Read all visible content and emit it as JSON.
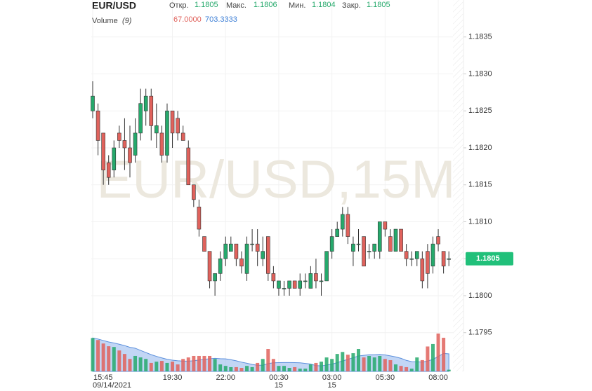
{
  "chart_data": {
    "type": "candlestick",
    "symbol": "EUR/USD",
    "watermark": "EUR/USD,15M",
    "ohlc_header": [
      {
        "label": "Откр.",
        "value": 1.1805
      },
      {
        "label": "Макс.",
        "value": 1.1806
      },
      {
        "label": "Мин.",
        "value": 1.1804
      },
      {
        "label": "Закр.",
        "value": 1.1805
      }
    ],
    "volume_label": "Volume",
    "volume_period": "(9)",
    "volume_last": "67.0000",
    "volume_ma": "703.3333",
    "last_price": 1.1805,
    "up_color": "#26a96c",
    "down_color": "#e0625c",
    "ma_color": "#8fb4ec",
    "grid": true,
    "categories": [
      "15:45",
      null,
      null,
      null,
      null,
      null,
      null,
      null,
      null,
      null,
      null,
      null,
      null,
      null,
      null,
      "19:30",
      null,
      null,
      null,
      null,
      null,
      null,
      null,
      null,
      null,
      "22:00",
      null,
      null,
      null,
      null,
      null,
      null,
      null,
      null,
      null,
      "00:30",
      null,
      null,
      null,
      null,
      null,
      null,
      null,
      null,
      null,
      "03:00",
      null,
      null,
      null,
      null,
      null,
      null,
      null,
      null,
      null,
      "05:30",
      null,
      null,
      null,
      null,
      null,
      null,
      null,
      null,
      null,
      "08:00",
      null,
      null
    ],
    "subcategories": [
      "09/14/2021",
      null,
      null,
      null,
      null,
      null,
      null,
      null,
      null,
      null,
      null,
      null,
      null,
      null,
      null,
      null,
      null,
      null,
      null,
      null,
      null,
      null,
      null,
      null,
      null,
      null,
      null,
      null,
      null,
      null,
      null,
      null,
      null,
      null,
      null,
      "15",
      null,
      null,
      null,
      null,
      null,
      null,
      null,
      null,
      null,
      "15",
      null,
      null,
      null,
      null,
      null,
      null,
      null,
      null,
      null,
      null,
      null,
      null,
      null,
      null,
      null,
      null,
      null,
      null,
      null,
      null,
      null,
      null
    ],
    "open": [
      1.1825,
      1.1825,
      1.1822,
      1.1818,
      1.1817,
      1.1822,
      1.1821,
      1.182,
      1.1819,
      1.1822,
      1.1825,
      1.1827,
      1.1822,
      1.1822,
      1.1819,
      1.1825,
      1.1824,
      1.1822,
      1.182,
      1.1815,
      1.1812,
      1.1808,
      1.1806,
      1.1802,
      1.1803,
      1.1805,
      1.1806,
      1.1807,
      1.1805,
      1.1803,
      1.1807,
      1.1807,
      1.1805,
      1.1808,
      1.1803,
      1.1801,
      1.1801,
      1.1801,
      1.1802,
      1.1801,
      1.1802,
      1.1801,
      1.1803,
      1.1802,
      1.1802,
      1.1806,
      1.1808,
      1.1809,
      1.1811,
      1.1806,
      1.1807,
      1.1808,
      1.1806,
      1.1806,
      1.1806,
      1.181,
      1.1808,
      1.1806,
      1.1809,
      1.1806,
      1.1805,
      1.1805,
      1.1805,
      1.1806,
      1.1804,
      1.1808,
      1.1806,
      1.1805
    ],
    "high": [
      1.1829,
      1.1826,
      1.1822,
      1.1819,
      1.1821,
      1.1823,
      1.1824,
      1.1823,
      1.1824,
      1.1828,
      1.1828,
      1.1828,
      1.1826,
      1.1823,
      1.1826,
      1.1825,
      1.1825,
      1.1823,
      1.1821,
      1.1815,
      1.1813,
      1.1808,
      1.1806,
      1.1803,
      1.1806,
      1.1808,
      1.1808,
      1.1807,
      1.1806,
      1.1808,
      1.1809,
      1.1809,
      1.1808,
      1.1808,
      1.1804,
      1.1802,
      1.1802,
      1.1802,
      1.1802,
      1.1803,
      1.1803,
      1.1804,
      1.1805,
      1.1803,
      1.1806,
      1.1809,
      1.181,
      1.1812,
      1.1812,
      1.1808,
      1.1809,
      1.1808,
      1.1807,
      1.1807,
      1.181,
      1.181,
      1.1809,
      1.1809,
      1.1809,
      1.1807,
      1.1806,
      1.1806,
      1.1806,
      1.1807,
      1.1808,
      1.1809,
      1.1806,
      1.1806
    ],
    "low": [
      1.1824,
      1.1819,
      1.1815,
      1.1815,
      1.1816,
      1.182,
      1.1817,
      1.1816,
      1.1818,
      1.1821,
      1.1823,
      1.1821,
      1.182,
      1.1818,
      1.1818,
      1.182,
      1.1821,
      1.1821,
      1.1815,
      1.1812,
      1.1808,
      1.1806,
      1.1801,
      1.18,
      1.1802,
      1.1804,
      1.1806,
      1.1804,
      1.1803,
      1.1802,
      1.1806,
      1.1804,
      1.1804,
      1.1802,
      1.1801,
      1.18,
      1.18,
      1.18,
      1.1801,
      1.18,
      1.1801,
      1.1801,
      1.1801,
      1.18,
      1.1802,
      1.1805,
      1.1808,
      1.1808,
      1.1807,
      1.1804,
      1.1806,
      1.1804,
      1.1805,
      1.1805,
      1.1805,
      1.1808,
      1.1806,
      1.1806,
      1.1806,
      1.1804,
      1.1804,
      1.1804,
      1.1801,
      1.1801,
      1.1803,
      1.1806,
      1.1803,
      1.1804
    ],
    "close": [
      1.1827,
      1.1821,
      1.1817,
      1.1816,
      1.182,
      1.1821,
      1.182,
      1.1818,
      1.1822,
      1.1826,
      1.1827,
      1.1823,
      1.1823,
      1.1819,
      1.1825,
      1.1822,
      1.1822,
      1.1821,
      1.1815,
      1.1813,
      1.1809,
      1.1806,
      1.1802,
      1.1803,
      1.1805,
      1.1807,
      1.1807,
      1.1805,
      1.1804,
      1.1807,
      1.1807,
      1.1806,
      1.1806,
      1.1803,
      1.1802,
      1.1802,
      1.1801,
      1.1802,
      1.1801,
      1.1802,
      1.1802,
      1.1803,
      1.1802,
      1.1802,
      1.1806,
      1.1808,
      1.1809,
      1.1811,
      1.1808,
      1.1807,
      1.1807,
      1.1804,
      1.1806,
      1.1807,
      1.181,
      1.1809,
      1.1806,
      1.1809,
      1.1806,
      1.1805,
      1.1805,
      1.1806,
      1.1802,
      1.1803,
      1.1807,
      1.1807,
      1.1804,
      1.1805
    ],
    "volume": [
      1340,
      1260,
      1120,
      1010,
      980,
      840,
      700,
      500,
      620,
      560,
      500,
      340,
      390,
      420,
      340,
      390,
      280,
      500,
      560,
      620,
      620,
      620,
      620,
      500,
      280,
      220,
      170,
      170,
      140,
      220,
      170,
      340,
      500,
      900,
      500,
      220,
      220,
      140,
      170,
      110,
      110,
      280,
      340,
      390,
      560,
      500,
      700,
      780,
      670,
      730,
      900,
      560,
      620,
      560,
      620,
      500,
      450,
      280,
      220,
      170,
      110,
      560,
      453,
      1000,
      1100,
      1520,
      1350,
      67
    ],
    "ylim": [
      1.179,
      1.184
    ],
    "yticks": [
      1.1795,
      {
        "value": 1.18,
        "label": "1.1800"
      },
      1.1805,
      {
        "value": 1.181,
        "label": "1.1810"
      },
      1.1815,
      {
        "value": 1.182,
        "label": "1.1820"
      },
      1.1825,
      {
        "value": 1.183,
        "label": "1.1830"
      },
      1.1835
    ]
  }
}
